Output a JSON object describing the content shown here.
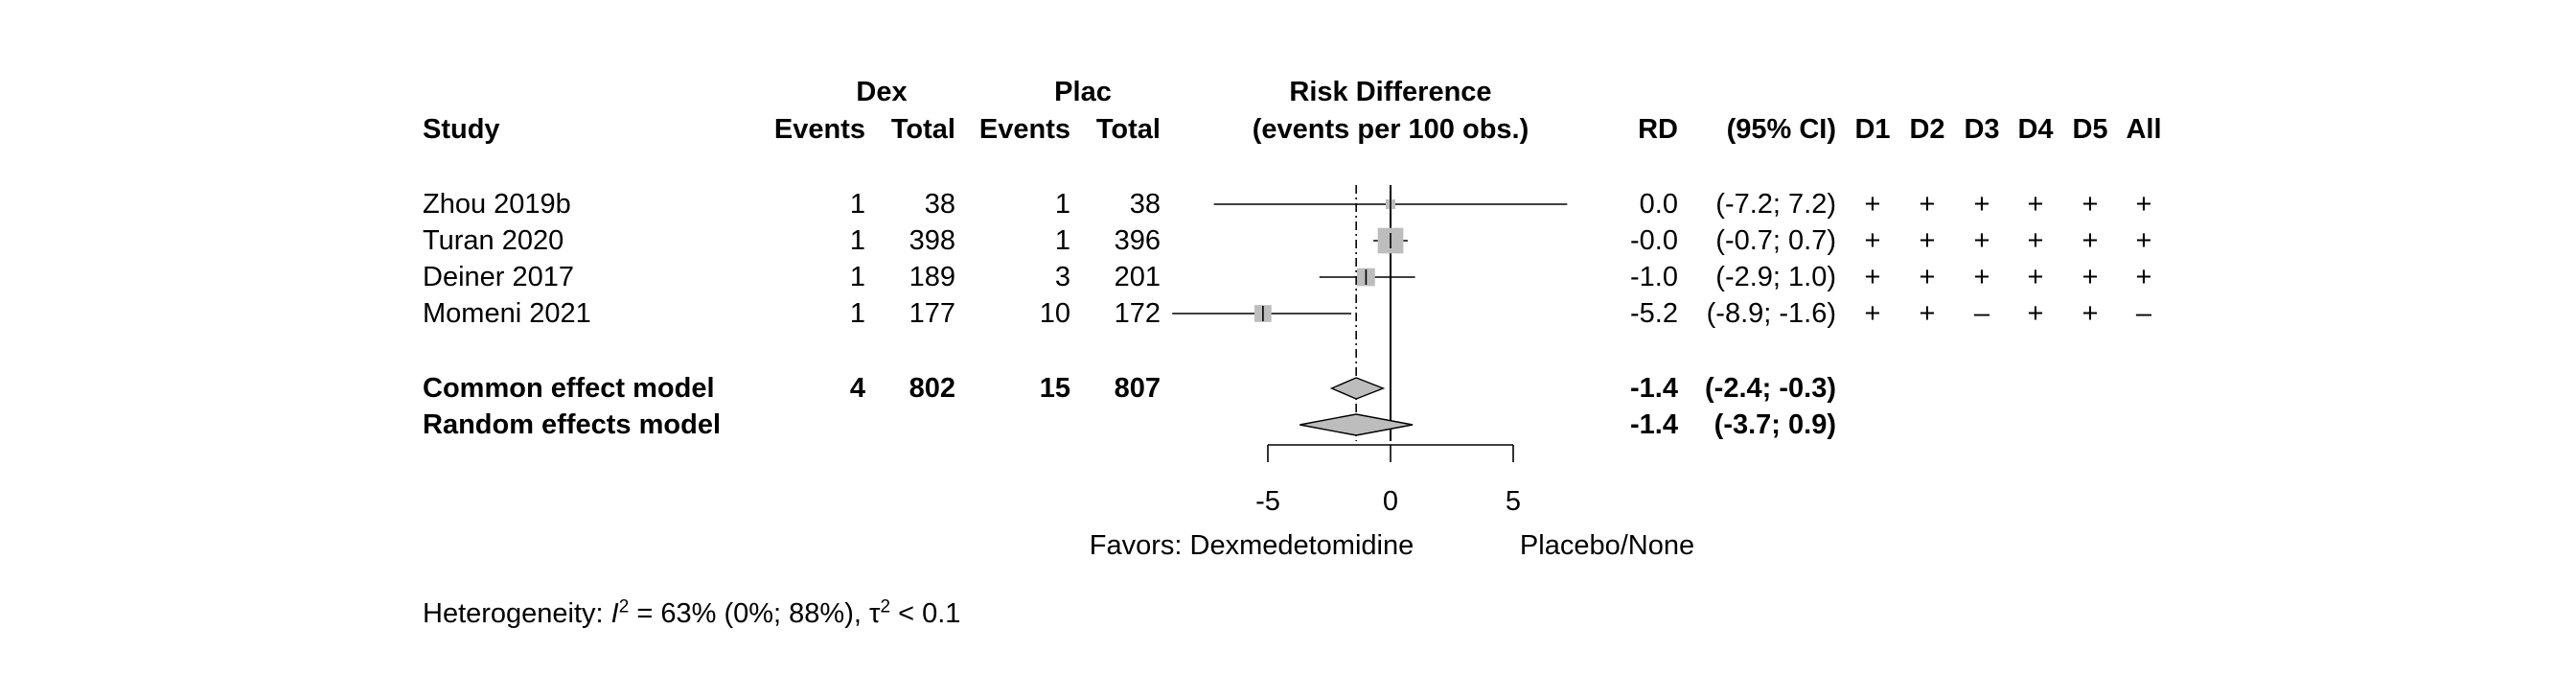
{
  "headers": {
    "study": "Study",
    "group1": "Dex",
    "group2": "Plac",
    "events": "Events",
    "total": "Total",
    "effect_title_line1": "Risk Difference",
    "effect_title_line2": "(events per 100 obs.)",
    "rd": "RD",
    "ci": "(95% CI)",
    "domains": [
      "D1",
      "D2",
      "D3",
      "D4",
      "D5",
      "All"
    ]
  },
  "chart_data": {
    "type": "forest",
    "measure": "Risk Difference",
    "xlim": [
      -5,
      5
    ],
    "x_ticks": [
      -5,
      0,
      5
    ],
    "reference_line": 0,
    "pooled_line": -1.4,
    "studies": [
      {
        "name": "Zhou 2019b",
        "e1": 1,
        "n1": 38,
        "e2": 1,
        "n2": 38,
        "rd": 0.0,
        "lower": -7.2,
        "upper": 7.2,
        "rd_text": "0.0",
        "ci_text": "(-7.2;  7.2)",
        "rob": [
          "+",
          "+",
          "+",
          "+",
          "+",
          "+"
        ]
      },
      {
        "name": "Turan 2020",
        "e1": 1,
        "n1": 398,
        "e2": 1,
        "n2": 396,
        "rd": 0.0,
        "lower": -0.7,
        "upper": 0.7,
        "rd_text": "-0.0",
        "ci_text": "(-0.7;  0.7)",
        "rob": [
          "+",
          "+",
          "+",
          "+",
          "+",
          "+"
        ]
      },
      {
        "name": "Deiner 2017",
        "e1": 1,
        "n1": 189,
        "e2": 3,
        "n2": 201,
        "rd": -1.0,
        "lower": -2.9,
        "upper": 1.0,
        "rd_text": "-1.0",
        "ci_text": "(-2.9;  1.0)",
        "rob": [
          "+",
          "+",
          "+",
          "+",
          "+",
          "+"
        ]
      },
      {
        "name": "Momeni 2021",
        "e1": 1,
        "n1": 177,
        "e2": 10,
        "n2": 172,
        "rd": -5.2,
        "lower": -8.9,
        "upper": -1.6,
        "rd_text": "-5.2",
        "ci_text": "(-8.9; -1.6)",
        "rob": [
          "+",
          "+",
          "–",
          "+",
          "+",
          "–"
        ]
      }
    ],
    "pooled": [
      {
        "name": "Common effect model",
        "e1": 4,
        "n1": 802,
        "e2": 15,
        "n2": 807,
        "rd": -1.4,
        "lower": -2.4,
        "upper": -0.3,
        "rd_text": "-1.4",
        "ci_text": "(-2.4; -0.3)"
      },
      {
        "name": "Random effects model",
        "e1": "",
        "n1": "",
        "e2": "",
        "n2": "",
        "rd": -1.4,
        "lower": -3.7,
        "upper": 0.9,
        "rd_text": "-1.4",
        "ci_text": "(-3.7;  0.9)"
      }
    ],
    "favors_left": "Favors: Dexmedetomidine",
    "favors_right": "Placebo/None",
    "heterogeneity": {
      "prefix": "Heterogeneity: ",
      "i2_symbol": "I",
      "i2_text": " = 63% (0%; 88%), ",
      "tau_symbol": "τ",
      "tau_text": " < 0.1"
    }
  }
}
